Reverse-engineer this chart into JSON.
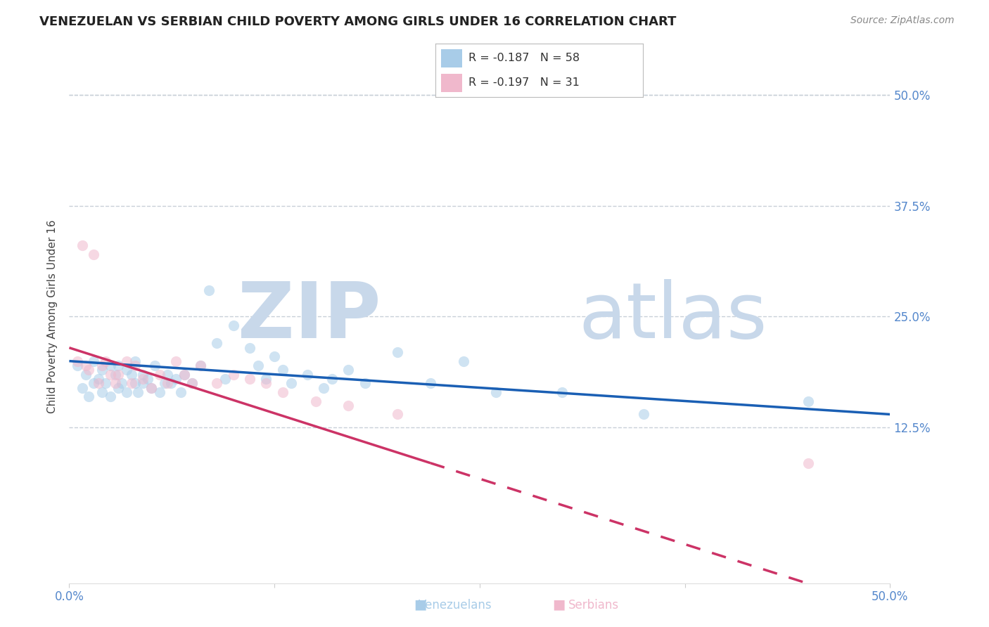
{
  "title": "VENEZUELAN VS SERBIAN CHILD POVERTY AMONG GIRLS UNDER 16 CORRELATION CHART",
  "source": "Source: ZipAtlas.com",
  "ylabel": "Child Poverty Among Girls Under 16",
  "xlim": [
    0.0,
    0.5
  ],
  "ylim": [
    -0.05,
    0.55
  ],
  "xticks": [
    0.0,
    0.125,
    0.25,
    0.375,
    0.5
  ],
  "xticklabels": [
    "0.0%",
    "",
    "",
    "",
    "50.0%"
  ],
  "yticks": [
    0.125,
    0.25,
    0.375,
    0.5
  ],
  "yticklabels": [
    "12.5%",
    "25.0%",
    "37.5%",
    "50.0%"
  ],
  "venezuelan_color": "#a8cce8",
  "serbian_color": "#f0b8cc",
  "venezuelan_line_color": "#1a5fb4",
  "serbian_line_color": "#cc3366",
  "r_venezuelan": -0.187,
  "n_venezuelan": 58,
  "r_serbian": -0.197,
  "n_serbian": 31,
  "venezuelan_x": [
    0.005,
    0.008,
    0.01,
    0.012,
    0.015,
    0.015,
    0.018,
    0.02,
    0.02,
    0.022,
    0.025,
    0.025,
    0.028,
    0.03,
    0.03,
    0.032,
    0.035,
    0.035,
    0.038,
    0.04,
    0.04,
    0.042,
    0.045,
    0.045,
    0.048,
    0.05,
    0.052,
    0.055,
    0.058,
    0.06,
    0.062,
    0.065,
    0.068,
    0.07,
    0.075,
    0.08,
    0.085,
    0.09,
    0.095,
    0.1,
    0.11,
    0.115,
    0.12,
    0.125,
    0.13,
    0.135,
    0.145,
    0.155,
    0.16,
    0.17,
    0.18,
    0.2,
    0.22,
    0.24,
    0.26,
    0.3,
    0.35,
    0.45
  ],
  "venezuelan_y": [
    0.195,
    0.17,
    0.185,
    0.16,
    0.2,
    0.175,
    0.18,
    0.165,
    0.19,
    0.175,
    0.195,
    0.16,
    0.185,
    0.17,
    0.195,
    0.175,
    0.165,
    0.19,
    0.185,
    0.175,
    0.2,
    0.165,
    0.185,
    0.175,
    0.18,
    0.17,
    0.195,
    0.165,
    0.175,
    0.185,
    0.175,
    0.18,
    0.165,
    0.185,
    0.175,
    0.195,
    0.28,
    0.22,
    0.18,
    0.24,
    0.215,
    0.195,
    0.18,
    0.205,
    0.19,
    0.175,
    0.185,
    0.17,
    0.18,
    0.19,
    0.175,
    0.21,
    0.175,
    0.2,
    0.165,
    0.165,
    0.14,
    0.155
  ],
  "serbian_x": [
    0.005,
    0.008,
    0.01,
    0.012,
    0.015,
    0.018,
    0.02,
    0.022,
    0.025,
    0.028,
    0.03,
    0.035,
    0.038,
    0.04,
    0.045,
    0.05,
    0.055,
    0.06,
    0.065,
    0.07,
    0.075,
    0.08,
    0.09,
    0.1,
    0.11,
    0.12,
    0.13,
    0.15,
    0.17,
    0.2,
    0.45
  ],
  "serbian_y": [
    0.2,
    0.33,
    0.195,
    0.19,
    0.32,
    0.175,
    0.195,
    0.2,
    0.185,
    0.175,
    0.185,
    0.2,
    0.175,
    0.195,
    0.18,
    0.17,
    0.185,
    0.175,
    0.2,
    0.185,
    0.175,
    0.195,
    0.175,
    0.185,
    0.18,
    0.175,
    0.165,
    0.155,
    0.15,
    0.14,
    0.085
  ],
  "watermark_zip": "ZIP",
  "watermark_atlas": "atlas",
  "watermark_color": "#c8d8ea",
  "background_color": "#ffffff",
  "grid_color": "#c8d0d8",
  "tick_color": "#5588cc",
  "title_fontsize": 13,
  "axis_label_fontsize": 11,
  "tick_fontsize": 12,
  "legend_fontsize": 12,
  "scatter_size": 120,
  "scatter_alpha": 0.55,
  "line_width": 2.5
}
